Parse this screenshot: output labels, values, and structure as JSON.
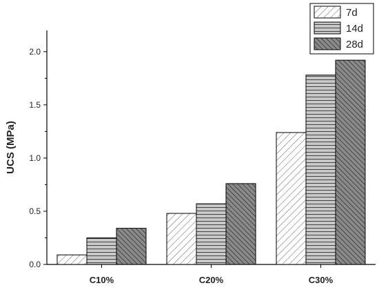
{
  "chart_data": {
    "type": "bar",
    "title": "",
    "xlabel": "",
    "ylabel": "UCS (MPa)",
    "categories": [
      "C10%",
      "C20%",
      "C30%"
    ],
    "series": [
      {
        "name": "7d",
        "values": [
          0.09,
          0.48,
          1.24
        ],
        "pattern": "diagonal-light",
        "color": "#ffffff"
      },
      {
        "name": "14d",
        "values": [
          0.25,
          0.57,
          1.78
        ],
        "pattern": "horizontal",
        "color": "#c8c8c8"
      },
      {
        "name": "28d",
        "values": [
          0.34,
          0.76,
          1.92
        ],
        "pattern": "diagonal-dark",
        "color": "#6e6e6e"
      }
    ],
    "ylim": [
      0,
      2.2
    ],
    "yticks": [
      "0.0",
      "0.5",
      "1.0",
      "1.5",
      "2.0"
    ],
    "ytick_values": [
      0,
      0.5,
      1.0,
      1.5,
      2.0
    ],
    "grid": false,
    "legend_position": "top-right"
  }
}
